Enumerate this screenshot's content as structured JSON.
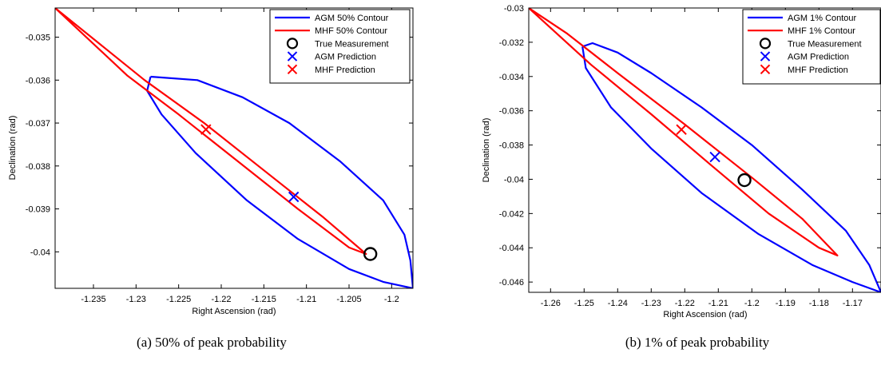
{
  "chart_data": [
    {
      "type": "line",
      "caption": "(a)  50% of peak probability",
      "xlabel": "Right Ascension (rad)",
      "ylabel": "Declination (rad)",
      "xlim": [
        -1.2395,
        -1.1975
      ],
      "ylim": [
        -0.04085,
        -0.03432
      ],
      "xticks": [
        -1.235,
        -1.23,
        -1.225,
        -1.22,
        -1.215,
        -1.21,
        -1.205,
        -1.2
      ],
      "yticks": [
        -0.035,
        -0.036,
        -0.037,
        -0.038,
        -0.039,
        -0.04
      ],
      "xtick_labels": [
        "-1.235",
        "-1.23",
        "-1.225",
        "-1.22",
        "-1.215",
        "-1.21",
        "-1.205",
        "-1.2"
      ],
      "ytick_labels": [
        "-0.035",
        "-0.036",
        "-0.037",
        "-0.038",
        "-0.039",
        "-0.04"
      ],
      "legend_position": "top-right",
      "series": [
        {
          "name": "AGM 50% Contour",
          "kind": "ellipse",
          "color": "#0000ff",
          "points": [
            [
              -1.2283,
              -0.03592
            ],
            [
              -1.2228,
              -0.036
            ],
            [
              -1.2175,
              -0.0364
            ],
            [
              -1.212,
              -0.037
            ],
            [
              -1.206,
              -0.0379
            ],
            [
              -1.201,
              -0.0388
            ],
            [
              -1.1985,
              -0.0396
            ],
            [
              -1.1978,
              -0.0402
            ],
            [
              -1.1975,
              -0.04085
            ],
            [
              -1.201,
              -0.0407
            ],
            [
              -1.205,
              -0.0404
            ],
            [
              -1.211,
              -0.0397
            ],
            [
              -1.217,
              -0.0388
            ],
            [
              -1.223,
              -0.0377
            ],
            [
              -1.227,
              -0.0368
            ],
            [
              -1.2287,
              -0.03625
            ],
            [
              -1.2283,
              -0.03592
            ]
          ]
        },
        {
          "name": "MHF 50% Contour",
          "kind": "contour",
          "color": "#ff0000",
          "points": [
            [
              -1.2395,
              -0.03432
            ],
            [
              -1.229,
              -0.036
            ],
            [
              -1.222,
              -0.037
            ],
            [
              -1.215,
              -0.0381
            ],
            [
              -1.208,
              -0.0392
            ],
            [
              -1.203,
              -0.04005
            ],
            [
              -1.205,
              -0.0399
            ],
            [
              -1.211,
              -0.039
            ],
            [
              -1.218,
              -0.0379
            ],
            [
              -1.225,
              -0.0368
            ],
            [
              -1.231,
              -0.0359
            ],
            [
              -1.2395,
              -0.03432
            ]
          ]
        },
        {
          "name": "True Measurement",
          "kind": "marker-o",
          "color": "#000000",
          "points": [
            [
              -1.2025,
              -0.04005
            ]
          ]
        },
        {
          "name": "AGM Prediction",
          "kind": "marker-x",
          "color": "#0000ff",
          "points": [
            [
              -1.2115,
              -0.03872
            ]
          ]
        },
        {
          "name": "MHF Prediction",
          "kind": "marker-x",
          "color": "#ff0000",
          "points": [
            [
              -1.2218,
              -0.03715
            ]
          ]
        }
      ]
    },
    {
      "type": "line",
      "caption": "(b)  1% of peak probability",
      "xlabel": "Right Ascension (rad)",
      "ylabel": "Declination (rad)",
      "xlim": [
        -1.2665,
        -1.1615
      ],
      "ylim": [
        -0.0466,
        -0.03
      ],
      "xticks": [
        -1.26,
        -1.25,
        -1.24,
        -1.23,
        -1.22,
        -1.21,
        -1.2,
        -1.19,
        -1.18,
        -1.17
      ],
      "yticks": [
        -0.03,
        -0.032,
        -0.034,
        -0.036,
        -0.038,
        -0.04,
        -0.042,
        -0.044,
        -0.046
      ],
      "xtick_labels": [
        "-1.26",
        "-1.25",
        "-1.24",
        "-1.23",
        "-1.22",
        "-1.21",
        "-1.2",
        "-1.19",
        "-1.18",
        "-1.17"
      ],
      "ytick_labels": [
        "-0.03",
        "-0.032",
        "-0.034",
        "-0.036",
        "-0.038",
        "-0.04",
        "-0.042",
        "-0.044",
        "-0.046"
      ],
      "legend_position": "top-right",
      "series": [
        {
          "name": "AGM 1% Contour",
          "kind": "ellipse",
          "color": "#0000ff",
          "points": [
            [
              -1.2505,
              -0.03225
            ],
            [
              -1.2475,
              -0.03205
            ],
            [
              -1.24,
              -0.0326
            ],
            [
              -1.23,
              -0.0338
            ],
            [
              -1.215,
              -0.0358
            ],
            [
              -1.2,
              -0.038
            ],
            [
              -1.185,
              -0.0406
            ],
            [
              -1.172,
              -0.043
            ],
            [
              -1.165,
              -0.045
            ],
            [
              -1.1615,
              -0.0466
            ],
            [
              -1.17,
              -0.046
            ],
            [
              -1.182,
              -0.045
            ],
            [
              -1.198,
              -0.0432
            ],
            [
              -1.215,
              -0.0408
            ],
            [
              -1.23,
              -0.0382
            ],
            [
              -1.242,
              -0.0358
            ],
            [
              -1.2495,
              -0.0335
            ],
            [
              -1.2505,
              -0.03225
            ]
          ]
        },
        {
          "name": "MHF 1% Contour",
          "kind": "contour",
          "color": "#ff0000",
          "points": [
            [
              -1.2665,
              -0.03
            ],
            [
              -1.255,
              -0.0315
            ],
            [
              -1.24,
              -0.0338
            ],
            [
              -1.22,
              -0.0368
            ],
            [
              -1.2,
              -0.0399
            ],
            [
              -1.185,
              -0.0423
            ],
            [
              -1.1745,
              -0.04445
            ],
            [
              -1.18,
              -0.044
            ],
            [
              -1.195,
              -0.042
            ],
            [
              -1.212,
              -0.0392
            ],
            [
              -1.23,
              -0.0362
            ],
            [
              -1.248,
              -0.0333
            ],
            [
              -1.2665,
              -0.03
            ]
          ]
        },
        {
          "name": "True Measurement",
          "kind": "marker-o",
          "color": "#000000",
          "points": [
            [
              -1.2022,
              -0.04005
            ]
          ]
        },
        {
          "name": "AGM Prediction",
          "kind": "marker-x",
          "color": "#0000ff",
          "points": [
            [
              -1.211,
              -0.0387
            ]
          ]
        },
        {
          "name": "MHF Prediction",
          "kind": "marker-x",
          "color": "#ff0000",
          "points": [
            [
              -1.221,
              -0.0371
            ]
          ]
        }
      ]
    }
  ]
}
